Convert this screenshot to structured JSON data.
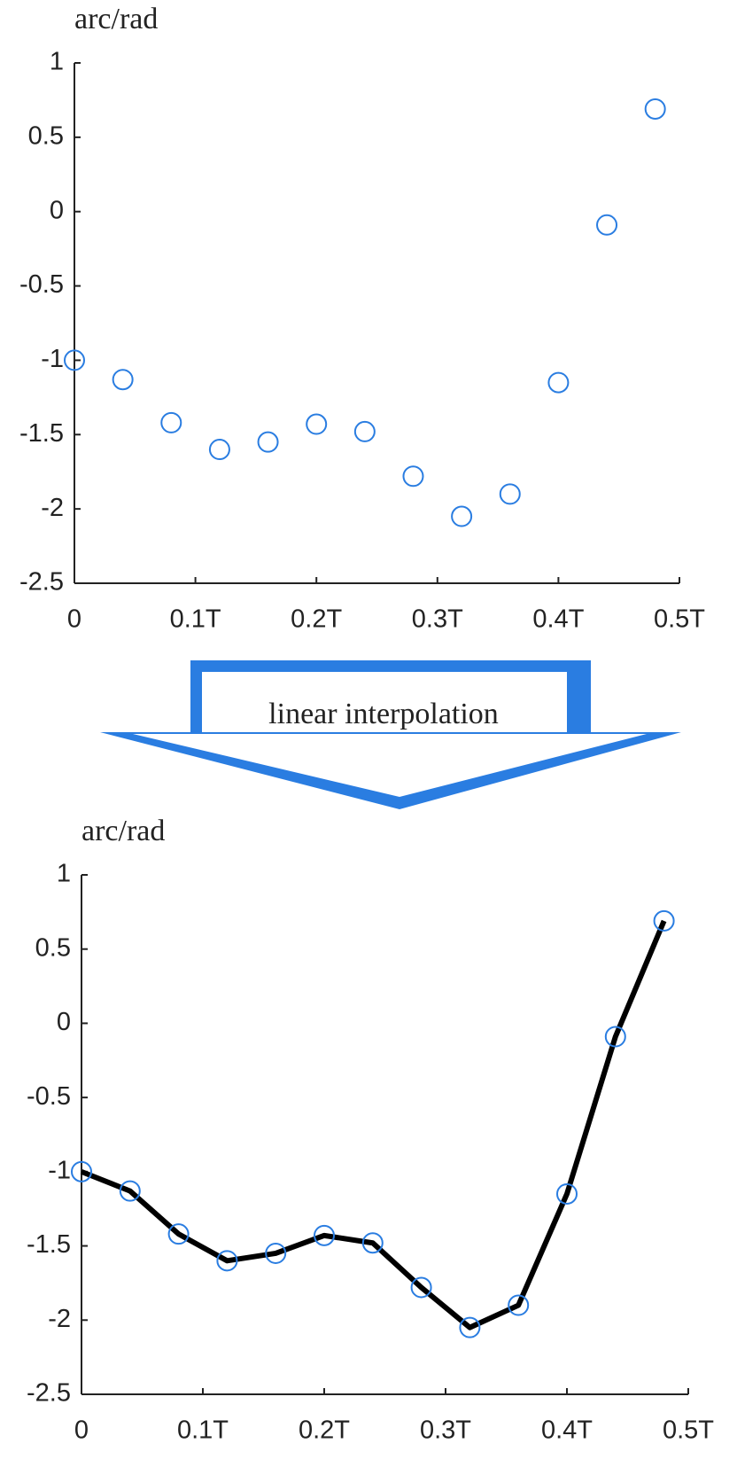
{
  "chart_data": [
    {
      "type": "scatter",
      "title": "arc/rad",
      "x": [
        0,
        0.04,
        0.08,
        0.12,
        0.16,
        0.2,
        0.24,
        0.28,
        0.32,
        0.36,
        0.4,
        0.44,
        0.48
      ],
      "values": [
        -1,
        -1.13,
        -1.42,
        -1.6,
        -1.55,
        -1.43,
        -1.48,
        -1.78,
        -2.05,
        -1.9,
        -1.15,
        -0.09,
        0.69
      ],
      "color": "#2a7de1",
      "xlim": [
        0,
        0.5
      ],
      "ylim": [
        -2.5,
        1
      ],
      "xticks": [
        0,
        {
          "value": 0.1,
          "label": "0.1T"
        },
        {
          "value": 0.2,
          "label": "0.2T"
        },
        {
          "value": 0.3,
          "label": "0.3T"
        },
        {
          "value": 0.4,
          "label": "0.4T"
        },
        {
          "value": 0.5,
          "label": "0.5T"
        }
      ],
      "yticks": [
        -2.5,
        -2,
        -1.5,
        -1,
        -0.5,
        0,
        0.5,
        1
      ]
    },
    {
      "type": "line",
      "title": "arc/rad",
      "x": [
        0,
        0.04,
        0.08,
        0.12,
        0.16,
        0.2,
        0.24,
        0.28,
        0.32,
        0.36,
        0.4,
        0.44,
        0.48
      ],
      "values": [
        -1,
        -1.13,
        -1.42,
        -1.6,
        -1.55,
        -1.43,
        -1.48,
        -1.78,
        -2.05,
        -1.9,
        -1.15,
        -0.09,
        0.69
      ],
      "color": "#2a7de1",
      "line_color": "#000000",
      "xlim": [
        0,
        0.5
      ],
      "ylim": [
        -2.5,
        1
      ],
      "xticks": [
        0,
        {
          "value": 0.1,
          "label": "0.1T"
        },
        {
          "value": 0.2,
          "label": "0.2T"
        },
        {
          "value": 0.3,
          "label": "0.3T"
        },
        {
          "value": 0.4,
          "label": "0.4T"
        },
        {
          "value": 0.5,
          "label": "0.5T"
        }
      ],
      "yticks": [
        -2.5,
        -2,
        -1.5,
        -1,
        -0.5,
        0,
        0.5,
        1
      ]
    }
  ],
  "annotation": "linear interpolation"
}
